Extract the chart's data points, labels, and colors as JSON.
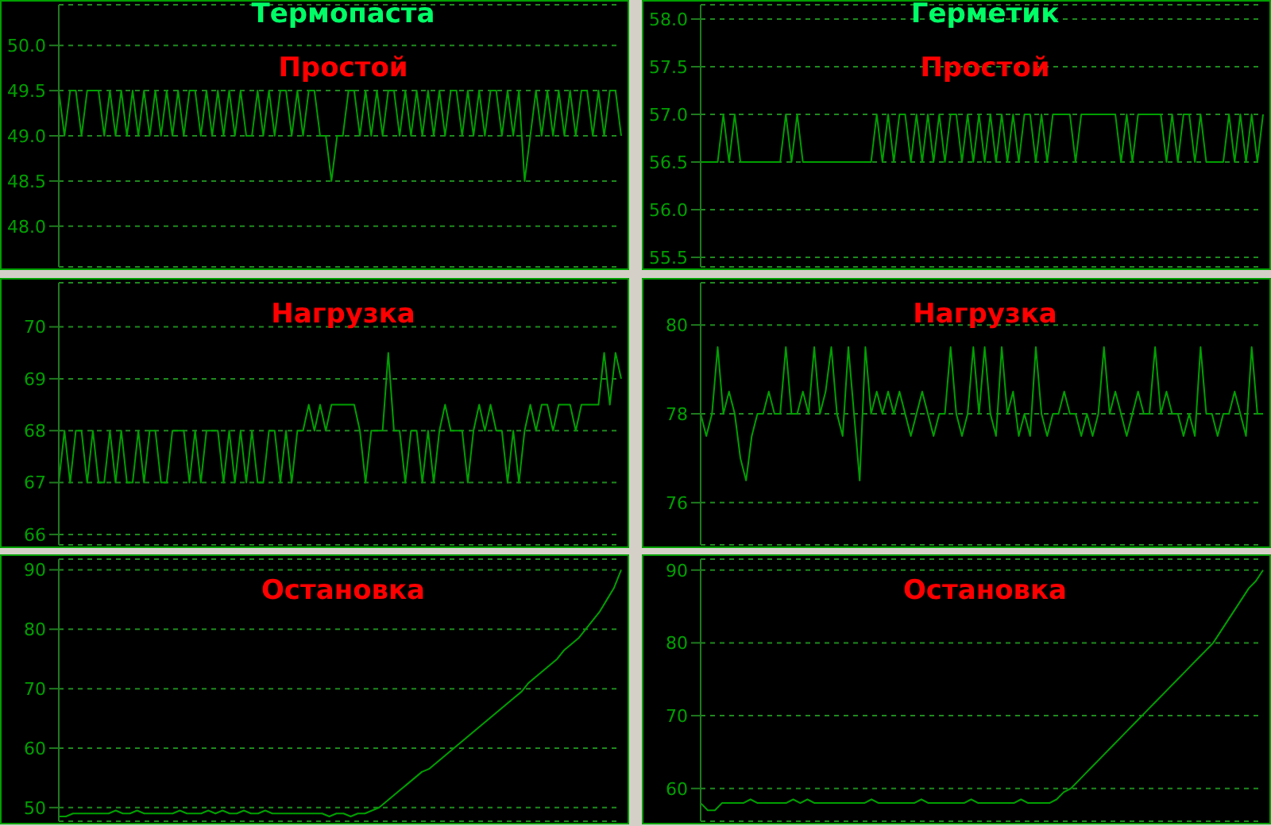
{
  "chart_data": [
    {
      "type": "line",
      "title": "Термопаста",
      "subtitle": "Простой",
      "categories": [
        null,
        null,
        null,
        null,
        null,
        null,
        null,
        null,
        null,
        null,
        null,
        null,
        null,
        null,
        null,
        null,
        null,
        null,
        null,
        null,
        null,
        null,
        null,
        null,
        null,
        null,
        null,
        null,
        null,
        null,
        null,
        null,
        null,
        null,
        null,
        null,
        null,
        null,
        null,
        null,
        null,
        null,
        null,
        null,
        null,
        null,
        null,
        null,
        null,
        null,
        null,
        null,
        null,
        null,
        null,
        null,
        null,
        null,
        null,
        null,
        null,
        null,
        null,
        null,
        null,
        null,
        null,
        null,
        null,
        null,
        null,
        null,
        null,
        null,
        null,
        null,
        null,
        null,
        null,
        null,
        null,
        null,
        null,
        null,
        null,
        null,
        null,
        null,
        null,
        null,
        null,
        null,
        null,
        null,
        null,
        null,
        null,
        null,
        null,
        null
      ],
      "series": [
        {
          "color": "#00a000",
          "values": [
            49.5,
            49,
            49.5,
            49.5,
            49,
            49.5,
            49.5,
            49.5,
            49,
            49.5,
            49,
            49.5,
            49,
            49.5,
            49,
            49.5,
            49,
            49.5,
            49,
            49.5,
            49,
            49.5,
            49,
            49.5,
            49.5,
            49,
            49.5,
            49,
            49.5,
            49,
            49.5,
            49,
            49.5,
            49,
            49,
            49.5,
            49,
            49.5,
            49,
            49.5,
            49.5,
            49,
            49.5,
            49,
            49.5,
            49.5,
            49,
            49,
            48.5,
            49,
            49,
            49.5,
            49.5,
            49,
            49.5,
            49,
            49.5,
            49,
            49.5,
            49.5,
            49,
            49.5,
            49,
            49.5,
            49,
            49.5,
            49,
            49.5,
            49,
            49.5,
            49.5,
            49,
            49.5,
            49,
            49.5,
            49,
            49.5,
            49.5,
            49,
            49.5,
            49,
            49.5,
            48.5,
            49,
            49.5,
            49,
            49.5,
            49,
            49.5,
            49,
            49.5,
            49,
            49.5,
            49.5,
            49,
            49.5,
            49,
            49.5,
            49.5,
            49
          ]
        }
      ],
      "ylim": [
        47.55,
        50.45
      ],
      "yticks": [
        {
          "value": 48,
          "label": "48.0"
        },
        {
          "value": 48.5,
          "label": "48.5"
        },
        {
          "value": 49,
          "label": "49.0"
        },
        {
          "value": 49.5,
          "label": "49.5"
        },
        {
          "value": 50,
          "label": "50.0"
        }
      ],
      "grid": "y",
      "tick_labels": "y"
    },
    {
      "type": "line",
      "title": "Герметик",
      "subtitle": "Простой",
      "categories": [
        null,
        null,
        null,
        null,
        null,
        null,
        null,
        null,
        null,
        null,
        null,
        null,
        null,
        null,
        null,
        null,
        null,
        null,
        null,
        null,
        null,
        null,
        null,
        null,
        null,
        null,
        null,
        null,
        null,
        null,
        null,
        null,
        null,
        null,
        null,
        null,
        null,
        null,
        null,
        null,
        null,
        null,
        null,
        null,
        null,
        null,
        null,
        null,
        null,
        null,
        null,
        null,
        null,
        null,
        null,
        null,
        null,
        null,
        null,
        null,
        null,
        null,
        null,
        null,
        null,
        null,
        null,
        null,
        null,
        null,
        null,
        null,
        null,
        null,
        null,
        null,
        null,
        null,
        null,
        null,
        null,
        null,
        null,
        null,
        null,
        null,
        null,
        null,
        null,
        null,
        null,
        null,
        null,
        null,
        null,
        null,
        null,
        null,
        null,
        null
      ],
      "series": [
        {
          "color": "#00a000",
          "values": [
            56.5,
            56.5,
            56.5,
            56.5,
            57,
            56.5,
            57,
            56.5,
            56.5,
            56.5,
            56.5,
            56.5,
            56.5,
            56.5,
            56.5,
            57,
            56.5,
            57,
            56.5,
            56.5,
            56.5,
            56.5,
            56.5,
            56.5,
            56.5,
            56.5,
            56.5,
            56.5,
            56.5,
            56.5,
            56.5,
            57,
            56.5,
            57,
            56.5,
            57,
            57,
            56.5,
            57,
            56.5,
            57,
            56.5,
            57,
            56.5,
            57,
            57,
            56.5,
            57,
            56.5,
            57,
            56.5,
            57,
            56.5,
            57,
            56.5,
            57,
            56.5,
            57,
            57,
            56.5,
            57,
            56.5,
            57,
            57,
            57,
            57,
            56.5,
            57,
            57,
            57,
            57,
            57,
            57,
            57,
            56.5,
            57,
            56.5,
            57,
            57,
            57,
            57,
            57,
            56.5,
            57,
            56.5,
            57,
            57,
            56.5,
            57,
            56.5,
            56.5,
            56.5,
            56.5,
            57,
            56.5,
            57,
            56.5,
            57,
            56.5,
            57
          ]
        }
      ],
      "ylim": [
        55.4,
        58.15
      ],
      "yticks": [
        {
          "value": 55.5,
          "label": "55.5"
        },
        {
          "value": 56,
          "label": "56.0"
        },
        {
          "value": 56.5,
          "label": "56.5"
        },
        {
          "value": 57,
          "label": "57.0"
        },
        {
          "value": 57.5,
          "label": "57.5"
        },
        {
          "value": 58,
          "label": "58.0"
        }
      ],
      "grid": "y",
      "tick_labels": "y"
    },
    {
      "type": "line",
      "subtitle": "Нагрузка",
      "categories": [
        null,
        null,
        null,
        null,
        null,
        null,
        null,
        null,
        null,
        null,
        null,
        null,
        null,
        null,
        null,
        null,
        null,
        null,
        null,
        null,
        null,
        null,
        null,
        null,
        null,
        null,
        null,
        null,
        null,
        null,
        null,
        null,
        null,
        null,
        null,
        null,
        null,
        null,
        null,
        null,
        null,
        null,
        null,
        null,
        null,
        null,
        null,
        null,
        null,
        null,
        null,
        null,
        null,
        null,
        null,
        null,
        null,
        null,
        null,
        null,
        null,
        null,
        null,
        null,
        null,
        null,
        null,
        null,
        null,
        null,
        null,
        null,
        null,
        null,
        null,
        null,
        null,
        null,
        null,
        null,
        null,
        null,
        null,
        null,
        null,
        null,
        null,
        null,
        null,
        null,
        null,
        null,
        null,
        null,
        null,
        null,
        null,
        null,
        null,
        null
      ],
      "series": [
        {
          "color": "#00a000",
          "values": [
            67,
            68,
            67,
            68,
            68,
            67,
            68,
            67,
            67,
            68,
            67,
            68,
            67,
            67,
            68,
            67,
            68,
            68,
            67,
            67,
            68,
            68,
            68,
            67,
            68,
            67,
            68,
            68,
            68,
            67,
            68,
            67,
            68,
            67,
            68,
            67,
            67,
            68,
            68,
            67,
            68,
            67,
            68,
            68,
            68.5,
            68,
            68.5,
            68,
            68.5,
            68.5,
            68.5,
            68.5,
            68.5,
            68,
            67,
            68,
            68,
            68,
            69.5,
            68,
            68,
            67,
            68,
            68,
            67,
            68,
            67,
            68,
            68.5,
            68,
            68,
            68,
            67,
            68,
            68.5,
            68,
            68.5,
            68,
            68,
            67,
            68,
            67,
            68,
            68.5,
            68,
            68.5,
            68.5,
            68,
            68.5,
            68.5,
            68.5,
            68,
            68.5,
            68.5,
            68.5,
            68.5,
            69.5,
            68.5,
            69.5,
            69
          ]
        }
      ],
      "ylim": [
        65.8,
        70.85
      ],
      "yticks": [
        66,
        67,
        68,
        69,
        70
      ],
      "grid": "y",
      "tick_labels": "y"
    },
    {
      "type": "line",
      "subtitle": "Нагрузка",
      "categories": [
        null,
        null,
        null,
        null,
        null,
        null,
        null,
        null,
        null,
        null,
        null,
        null,
        null,
        null,
        null,
        null,
        null,
        null,
        null,
        null,
        null,
        null,
        null,
        null,
        null,
        null,
        null,
        null,
        null,
        null,
        null,
        null,
        null,
        null,
        null,
        null,
        null,
        null,
        null,
        null,
        null,
        null,
        null,
        null,
        null,
        null,
        null,
        null,
        null,
        null,
        null,
        null,
        null,
        null,
        null,
        null,
        null,
        null,
        null,
        null,
        null,
        null,
        null,
        null,
        null,
        null,
        null,
        null,
        null,
        null,
        null,
        null,
        null,
        null,
        null,
        null,
        null,
        null,
        null,
        null,
        null,
        null,
        null,
        null,
        null,
        null,
        null,
        null,
        null,
        null,
        null,
        null,
        null,
        null,
        null,
        null,
        null,
        null,
        null,
        null
      ],
      "series": [
        {
          "color": "#00a000",
          "values": [
            78,
            77.5,
            78,
            79.5,
            78,
            78.5,
            78,
            77,
            76.5,
            77.5,
            78,
            78,
            78.5,
            78,
            78,
            79.5,
            78,
            78,
            78.5,
            78,
            79.5,
            78,
            78.5,
            79.5,
            78,
            77.5,
            79.5,
            78,
            76.5,
            79.5,
            78,
            78.5,
            78,
            78.5,
            78,
            78.5,
            78,
            77.5,
            78,
            78.5,
            78,
            77.5,
            78,
            78,
            79.5,
            78,
            77.5,
            78,
            79.5,
            78,
            79.5,
            78,
            77.5,
            79.5,
            78,
            78.5,
            77.5,
            78,
            77.5,
            79.5,
            78,
            77.5,
            78,
            78,
            78.5,
            78,
            78,
            77.5,
            78,
            77.5,
            78,
            79.5,
            78,
            78.5,
            78,
            77.5,
            78,
            78.5,
            78,
            78,
            79.5,
            78,
            78.5,
            78,
            78,
            77.5,
            78,
            77.5,
            79.5,
            78,
            78,
            77.5,
            78,
            78,
            78.5,
            78,
            77.5,
            79.5,
            78,
            78
          ]
        }
      ],
      "ylim": [
        75.05,
        80.95
      ],
      "yticks": [
        76,
        78,
        80
      ],
      "grid": "y",
      "tick_labels": "y"
    },
    {
      "type": "line",
      "subtitle": "Остановка",
      "categories": [
        null,
        null,
        null,
        null,
        null,
        null,
        null,
        null,
        null,
        null,
        null,
        null,
        null,
        null,
        null,
        null,
        null,
        null,
        null,
        null,
        null,
        null,
        null,
        null,
        null,
        null,
        null,
        null,
        null,
        null,
        null,
        null,
        null,
        null,
        null,
        null,
        null,
        null,
        null,
        null,
        null,
        null,
        null,
        null,
        null,
        null,
        null,
        null,
        null,
        null,
        null,
        null,
        null,
        null,
        null,
        null,
        null,
        null,
        null,
        null,
        null,
        null,
        null,
        null,
        null,
        null,
        null,
        null,
        null,
        null,
        null,
        null,
        null,
        null,
        null,
        null,
        null,
        null,
        null,
        null
      ],
      "series": [
        {
          "color": "#00a000",
          "values": [
            48.5,
            48.5,
            49,
            49,
            49,
            49,
            49,
            49,
            49.5,
            49,
            49,
            49.5,
            49,
            49,
            49,
            49,
            49,
            49.5,
            49,
            49,
            49,
            49.5,
            49,
            49.5,
            49,
            49,
            49.5,
            49,
            49,
            49.5,
            49,
            49,
            49,
            49,
            49,
            49,
            49,
            49,
            48.5,
            49,
            49,
            48.5,
            49,
            49,
            49.5,
            50,
            51,
            52,
            53,
            54,
            55,
            56,
            56.5,
            57.5,
            58.5,
            59.5,
            60.5,
            61.5,
            62.5,
            63.5,
            64.5,
            65.5,
            66.5,
            67.5,
            68.5,
            69.5,
            71,
            72,
            73,
            74,
            75,
            76.5,
            77.5,
            78.5,
            80,
            81.5,
            83,
            85,
            87,
            90
          ]
        }
      ],
      "ylim": [
        47.7,
        91.8
      ],
      "yticks": [
        50,
        60,
        70,
        80,
        90
      ],
      "grid": "y",
      "tick_labels": "y"
    },
    {
      "type": "line",
      "subtitle": "Остановка",
      "categories": [
        null,
        null,
        null,
        null,
        null,
        null,
        null,
        null,
        null,
        null,
        null,
        null,
        null,
        null,
        null,
        null,
        null,
        null,
        null,
        null,
        null,
        null,
        null,
        null,
        null,
        null,
        null,
        null,
        null,
        null,
        null,
        null,
        null,
        null,
        null,
        null,
        null,
        null,
        null,
        null,
        null,
        null,
        null,
        null,
        null,
        null,
        null,
        null,
        null,
        null,
        null,
        null,
        null,
        null,
        null,
        null,
        null,
        null,
        null,
        null,
        null,
        null,
        null,
        null,
        null,
        null,
        null,
        null,
        null,
        null,
        null,
        null,
        null,
        null,
        null,
        null,
        null,
        null,
        null,
        null
      ],
      "series": [
        {
          "color": "#00a000",
          "values": [
            58,
            57,
            57,
            58,
            58,
            58,
            58,
            58.5,
            58,
            58,
            58,
            58,
            58,
            58.5,
            58,
            58.5,
            58,
            58,
            58,
            58,
            58,
            58,
            58,
            58,
            58.5,
            58,
            58,
            58,
            58,
            58,
            58,
            58.5,
            58,
            58,
            58,
            58,
            58,
            58,
            58.5,
            58,
            58,
            58,
            58,
            58,
            58,
            58.5,
            58,
            58,
            58,
            58,
            58.5,
            59.5,
            60,
            61,
            62,
            63,
            64,
            65,
            66,
            67,
            68,
            69,
            70,
            71,
            72,
            73,
            74,
            75,
            76,
            77,
            78,
            79,
            80,
            81.5,
            83,
            84.5,
            86,
            87.5,
            88.5,
            90
          ]
        }
      ],
      "ylim": [
        55.5,
        91.5
      ],
      "yticks": [
        60,
        70,
        80,
        90
      ],
      "grid": "y",
      "tick_labels": "y"
    }
  ]
}
